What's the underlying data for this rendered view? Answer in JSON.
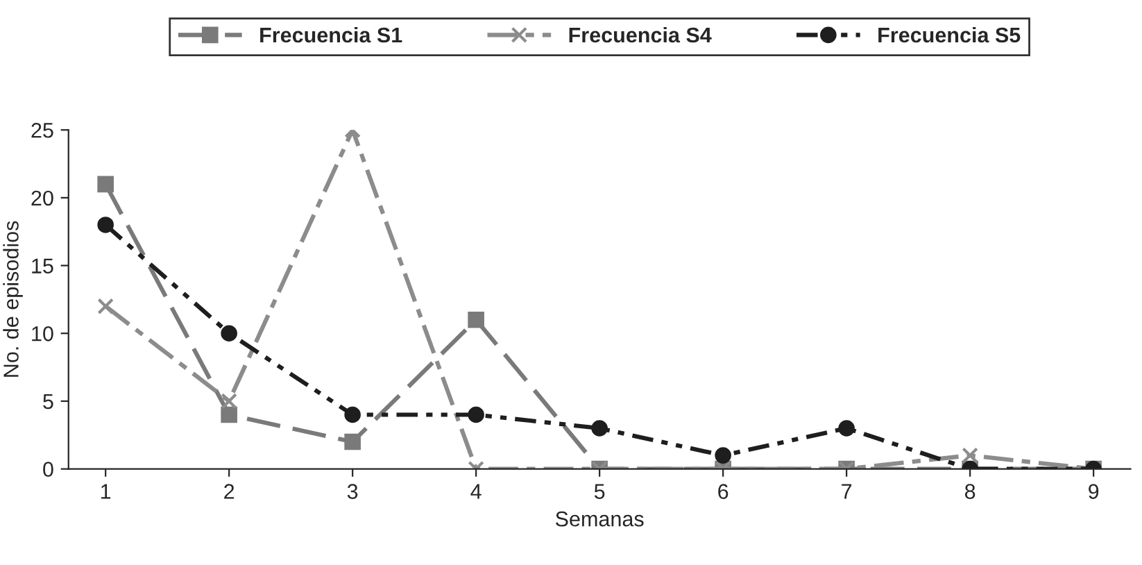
{
  "chart_data": {
    "type": "line",
    "xlabel": "Semanas",
    "ylabel": "No. de episodios",
    "categories": [
      "1",
      "2",
      "3",
      "4",
      "5",
      "6",
      "7",
      "8",
      "9"
    ],
    "series": [
      {
        "name": "Frecuencia S1",
        "color": "#7a7a7a",
        "values": [
          21,
          4,
          2,
          11,
          0,
          0,
          0,
          0,
          0
        ],
        "marker": "square",
        "line_style": "dashed"
      },
      {
        "name": "Frecuencia S4",
        "color": "#8c8c8c",
        "values": [
          12,
          5,
          25,
          0,
          0,
          0,
          0,
          1,
          0
        ],
        "marker": "cross",
        "line_style": "dashdot"
      },
      {
        "name": "Frecuencia S5",
        "color": "#1e1e1e",
        "values": [
          18,
          10,
          4,
          4,
          3,
          1,
          3,
          0,
          0
        ],
        "marker": "circle",
        "line_style": "dotted"
      }
    ],
    "ylim": [
      0,
      25
    ],
    "yticks": [
      0,
      5,
      10,
      15,
      20,
      25
    ],
    "grid": false,
    "legend": "top"
  }
}
